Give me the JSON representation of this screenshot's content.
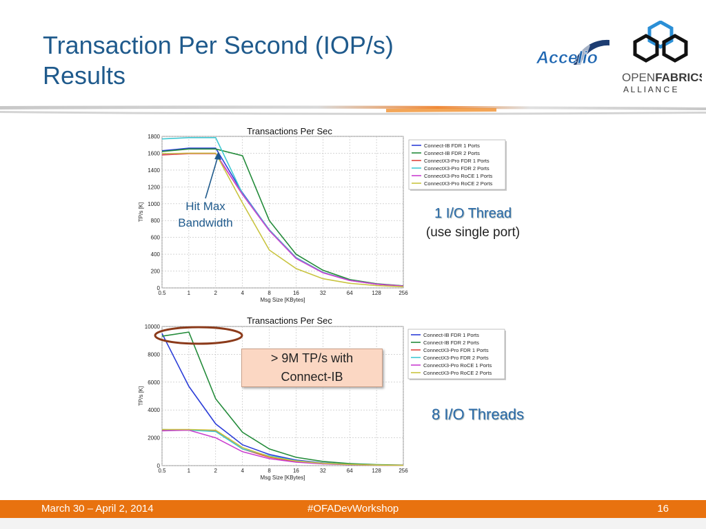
{
  "slide": {
    "title_line1": "Transaction Per Second (IOP/s)",
    "title_line2": "Results",
    "notes": {
      "hit_max_line1": "Hit Max",
      "hit_max_line2": "Bandwidth",
      "one_thread": "1 I/O Thread",
      "one_thread_sub": "(use single port)",
      "eight_threads": "8 I/O Threads",
      "callout_line1": "> 9M TP/s with",
      "callout_line2": "Connect-IB"
    },
    "logos": {
      "accelio": "Accelio",
      "ofa_open": "OPEN",
      "ofa_fabrics": "FABRICS",
      "ofa_alliance": "A L L I A N C E"
    },
    "footer": {
      "date": "March 30 – April 2, 2014",
      "hashtag": "#OFADevWorkshop",
      "page": "16"
    },
    "colors": {
      "title": "#1f5a8c",
      "footer": "#e8720f",
      "callout_fill": "#fbd7c3",
      "circle": "#8b3a1a"
    }
  },
  "chart_data": [
    {
      "type": "line",
      "title": "Transactions Per Sec",
      "xlabel": "Msg Size [KBytes]",
      "ylabel": "TP/s [K]",
      "x": [
        "0.5",
        "1",
        "2",
        "4",
        "8",
        "16",
        "32",
        "64",
        "128",
        "256"
      ],
      "ylim": [
        0,
        1800
      ],
      "yticks": [
        0,
        200,
        400,
        600,
        800,
        1000,
        1200,
        1400,
        1600,
        1800
      ],
      "grid": true,
      "legend": "right",
      "series": [
        {
          "name": "Connect-IB FDR 1 Ports",
          "color": "#2c3ed8",
          "values": [
            1630,
            1660,
            1660,
            1130,
            690,
            360,
            185,
            90,
            45,
            22
          ]
        },
        {
          "name": "Connect-IB FDR 2 Ports",
          "color": "#238b3a",
          "values": [
            1620,
            1650,
            1650,
            1570,
            800,
            400,
            210,
            100,
            50,
            25
          ]
        },
        {
          "name": "ConnectX3-Pro FDR 1 Ports",
          "color": "#e0443c",
          "values": [
            1580,
            1595,
            1595,
            1110,
            690,
            360,
            185,
            90,
            45,
            22
          ]
        },
        {
          "name": "ConnectX3-Pro FDR 2 Ports",
          "color": "#3fc8d2",
          "values": [
            1770,
            1785,
            1785,
            1120,
            690,
            360,
            185,
            90,
            45,
            22
          ]
        },
        {
          "name": "ConnectX3-Pro RoCE 1 Ports",
          "color": "#c93ed0",
          "values": [
            1590,
            1600,
            1600,
            1110,
            680,
            350,
            180,
            88,
            44,
            22
          ]
        },
        {
          "name": "ConnectX3-Pro RoCE 2 Ports",
          "color": "#c9c440",
          "values": [
            1595,
            1600,
            1600,
            1010,
            450,
            230,
            110,
            55,
            28,
            14
          ]
        }
      ]
    },
    {
      "type": "line",
      "title": "Transactions Per Sec",
      "xlabel": "Msg Size [KBytes]",
      "ylabel": "TP/s [K]",
      "x": [
        "0.5",
        "1",
        "2",
        "4",
        "8",
        "16",
        "32",
        "64",
        "128",
        "256"
      ],
      "ylim": [
        0,
        10000
      ],
      "yticks": [
        0,
        2000,
        4000,
        6000,
        8000,
        10000
      ],
      "grid": true,
      "legend": "right",
      "series": [
        {
          "name": "Connect-IB FDR 1 Ports",
          "color": "#2c3ed8",
          "values": [
            9500,
            5700,
            3000,
            1500,
            800,
            400,
            200,
            100,
            50,
            25
          ]
        },
        {
          "name": "Connect-IB FDR 2 Ports",
          "color": "#238b3a",
          "values": [
            9300,
            9600,
            4800,
            2400,
            1200,
            600,
            300,
            150,
            75,
            40
          ]
        },
        {
          "name": "ConnectX3-Pro FDR 1 Ports",
          "color": "#e0443c",
          "values": [
            2550,
            2550,
            2500,
            1200,
            600,
            300,
            150,
            75,
            40,
            20
          ]
        },
        {
          "name": "ConnectX3-Pro FDR 2 Ports",
          "color": "#3fc8d2",
          "values": [
            2600,
            2550,
            2450,
            1200,
            700,
            350,
            180,
            90,
            45,
            22
          ]
        },
        {
          "name": "ConnectX3-Pro RoCE 1 Ports",
          "color": "#c93ed0",
          "values": [
            2500,
            2550,
            2000,
            1000,
            500,
            250,
            130,
            65,
            35,
            18
          ]
        },
        {
          "name": "ConnectX3-Pro RoCE 2 Ports",
          "color": "#c9c440",
          "values": [
            2600,
            2600,
            2550,
            1300,
            650,
            330,
            170,
            85,
            42,
            21
          ]
        }
      ]
    }
  ]
}
